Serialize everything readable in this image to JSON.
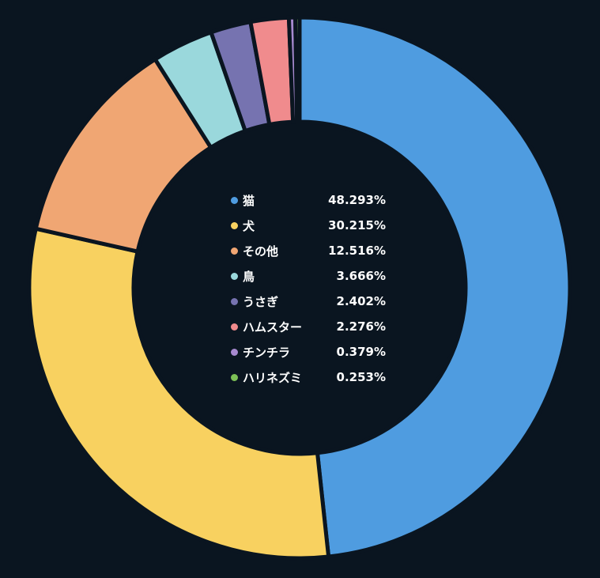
{
  "chart_data": {
    "type": "pie",
    "donut": true,
    "categories": [
      "猫",
      "犬",
      "その他",
      "鳥",
      "うさぎ",
      "ハムスター",
      "チンチラ",
      "ハリネズミ"
    ],
    "values": [
      48.293,
      30.215,
      12.516,
      3.666,
      2.402,
      2.276,
      0.379,
      0.253
    ],
    "value_labels": [
      "48.293%",
      "30.215%",
      "12.516%",
      "3.666%",
      "2.402%",
      "2.276%",
      "0.379%",
      "0.253%"
    ],
    "colors": [
      "#4f9ce0",
      "#f8d160",
      "#f0a673",
      "#9ad8dc",
      "#7673b0",
      "#f08b8d",
      "#a78ad0",
      "#7cc056"
    ],
    "legend_position": "center",
    "title": ""
  }
}
